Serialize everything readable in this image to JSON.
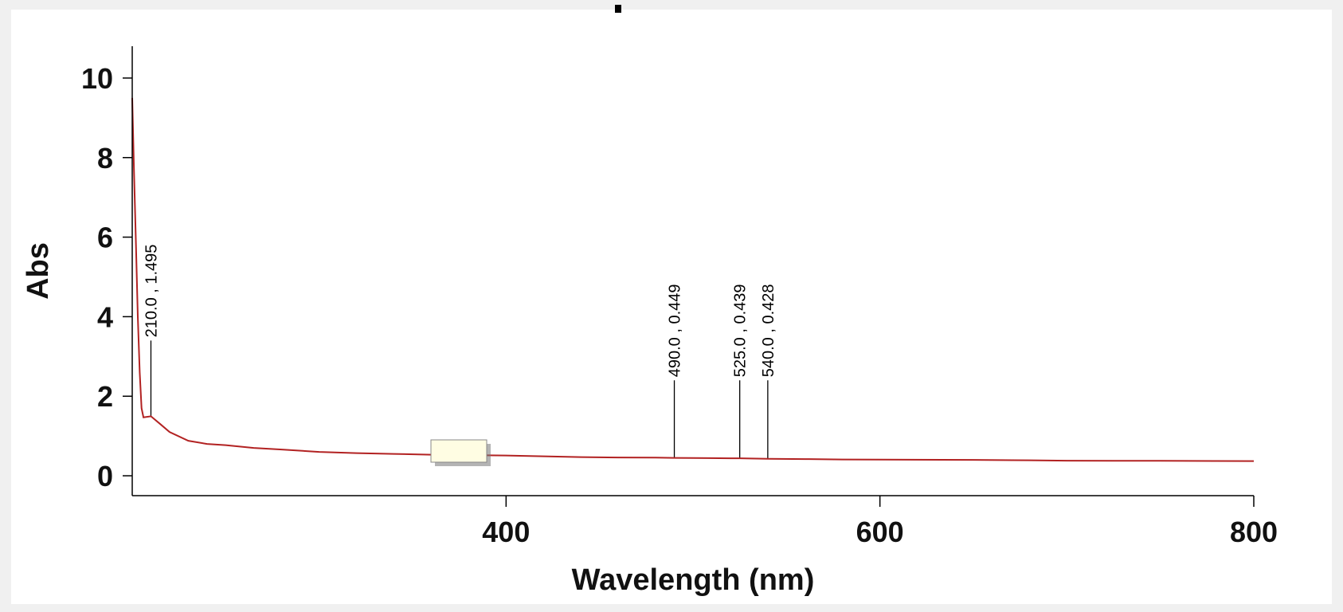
{
  "chart_data": {
    "type": "line",
    "title": "",
    "xlabel": "Wavelength (nm)",
    "ylabel": "Abs",
    "xlim": [
      200,
      800
    ],
    "ylim": [
      -0.5,
      10.8
    ],
    "x_ticks": [
      400,
      600,
      800
    ],
    "y_ticks": [
      0,
      2,
      4,
      6,
      8,
      10
    ],
    "grid": false,
    "legend": "none",
    "line_color": "#b22222",
    "series": [
      {
        "x": [
          200,
          201,
          202,
          203,
          204,
          205,
          206,
          210,
          215,
          220,
          230,
          240,
          250,
          265,
          280,
          300,
          320,
          340,
          360,
          380,
          400,
          420,
          440,
          460,
          480,
          490,
          500,
          520,
          525,
          540,
          560,
          580,
          600,
          650,
          680,
          700,
          750,
          800
        ],
        "y": [
          9.5,
          7.6,
          5.8,
          4.0,
          2.6,
          1.7,
          1.47,
          1.495,
          1.3,
          1.1,
          0.88,
          0.8,
          0.77,
          0.7,
          0.66,
          0.6,
          0.57,
          0.55,
          0.53,
          0.52,
          0.51,
          0.49,
          0.47,
          0.46,
          0.455,
          0.449,
          0.445,
          0.44,
          0.439,
          0.428,
          0.42,
          0.41,
          0.405,
          0.4,
          0.39,
          0.38,
          0.375,
          0.37
        ]
      }
    ],
    "peaks": [
      {
        "x": 210,
        "y": 1.495,
        "label": "210.0 , 1.495"
      },
      {
        "x": 490,
        "y": 0.449,
        "label": "490.0 , 0.449"
      },
      {
        "x": 525,
        "y": 0.439,
        "label": "525.0 , 0.439"
      },
      {
        "x": 540,
        "y": 0.428,
        "label": "540.0 , 0.428"
      }
    ]
  }
}
